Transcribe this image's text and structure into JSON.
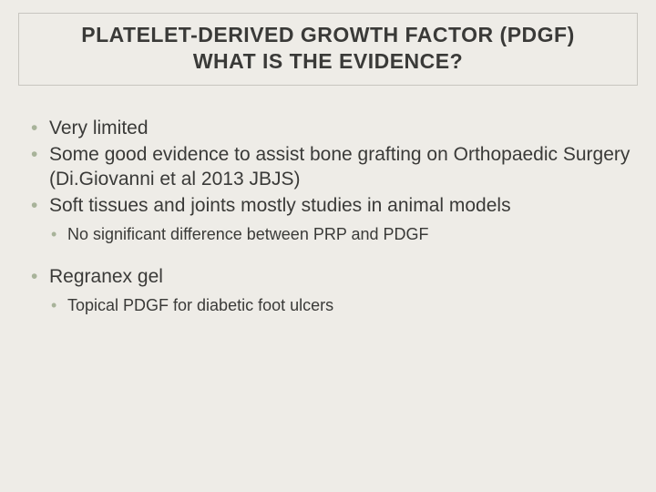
{
  "colors": {
    "background": "#eeece7",
    "text": "#3a3a38",
    "bullet": "#a8b39a",
    "title_border": "#c8c6c0"
  },
  "typography": {
    "font_family": "Arial",
    "title_fontsize_pt": 17,
    "title_fontweight": "bold",
    "body_fontsize_pt": 16,
    "sub_fontsize_pt": 13
  },
  "title": {
    "line1": "PLATELET-DERIVED GROWTH FACTOR (PDGF)",
    "line2": "WHAT IS THE EVIDENCE?"
  },
  "bullets": [
    {
      "text": "Very limited"
    },
    {
      "text": "Some good evidence to assist bone grafting on Orthopaedic Surgery (Di.Giovanni et al 2013 JBJS)"
    },
    {
      "text": "Soft tissues and joints mostly studies in animal models",
      "sub": [
        {
          "text": "No significant difference between PRP and PDGF"
        }
      ]
    },
    {
      "gap": true
    },
    {
      "text": "Regranex gel",
      "sub": [
        {
          "text": "Topical PDGF for diabetic foot ulcers"
        }
      ]
    }
  ]
}
